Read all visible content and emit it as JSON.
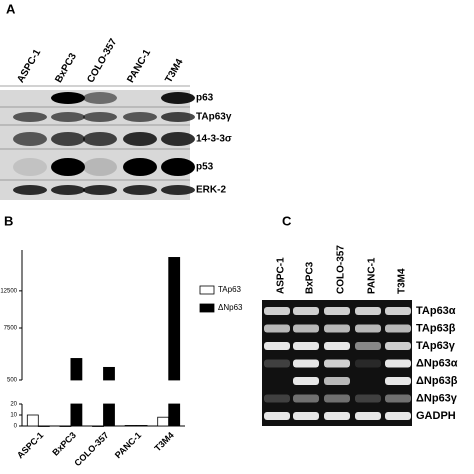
{
  "panels": {
    "A": {
      "letter": "A",
      "lanes": [
        "ASPC-1",
        "BxPC3",
        "COLO-357",
        "PANC-1",
        "T3M4"
      ],
      "rows": [
        "p63",
        "TAp63γ",
        "14-3-3σ",
        "p53",
        "ERK-2"
      ]
    },
    "B": {
      "letter": "B"
    },
    "C": {
      "letter": "C",
      "lanes": [
        "ASPC-1",
        "BxPC3",
        "COLO-357",
        "PANC-1",
        "T3M4"
      ],
      "rows": [
        "TAp63α",
        "TAp63β",
        "TAp63γ",
        "ΔNp63α",
        "ΔNp63β",
        "ΔNp63γ",
        "GADPH"
      ]
    }
  },
  "chart_data": {
    "type": "bar",
    "categories": [
      "ASPC-1",
      "BxPC3",
      "COLO-357",
      "PANC-1",
      "T3M4"
    ],
    "series": [
      {
        "name": "TAp63",
        "color": "#ffffff",
        "values": [
          10,
          0,
          0,
          0.5,
          8
        ]
      },
      {
        "name": "ΔNp63",
        "color": "#000000",
        "values": [
          0,
          3400,
          2200,
          0.5,
          17000
        ]
      }
    ],
    "ylim": [
      0,
      18000
    ],
    "ybreak": [
      20,
      500
    ],
    "yticks": [
      0,
      10,
      20,
      500,
      7500,
      12500
    ],
    "legend": "right"
  }
}
